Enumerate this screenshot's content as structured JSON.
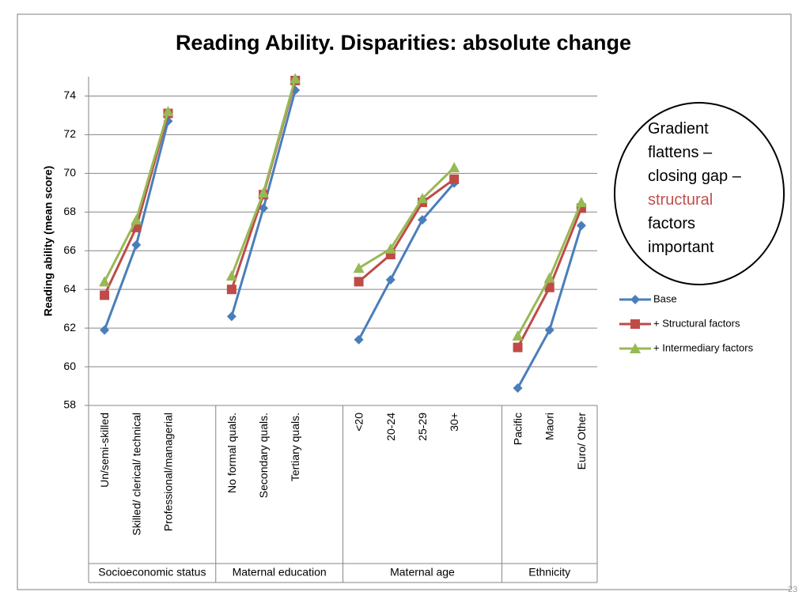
{
  "chart_data": {
    "type": "line",
    "title": "Reading Ability. Disparities: absolute change",
    "y_label": "Reading ability (mean score)",
    "categories": [
      "Un/semi-skilled",
      "Skilled/ clerical/ technical",
      "Professional/managerial",
      null,
      "No formal quals.",
      "Secondary quals.",
      "Tertiary quals.",
      null,
      "<20",
      "20-24",
      "25-29",
      "30+",
      null,
      "Pacific",
      "Maori",
      "Euro/ Other"
    ],
    "groups": [
      "Socioeconomic status",
      "Maternal education",
      "Maternal age",
      "Ethnicity"
    ],
    "series": [
      {
        "name": "Base",
        "color": "#4a7ebb",
        "marker": "diamond",
        "values": [
          61.9,
          66.3,
          72.7,
          null,
          62.6,
          68.2,
          74.3,
          null,
          61.4,
          64.5,
          67.6,
          69.5,
          null,
          58.9,
          61.9,
          67.3
        ]
      },
      {
        "name": "+ Structural factors",
        "color": "#be4b48",
        "marker": "square",
        "values": [
          63.7,
          67.2,
          73.1,
          null,
          64.0,
          68.9,
          74.8,
          null,
          64.4,
          65.8,
          68.5,
          69.7,
          null,
          61.0,
          64.1,
          68.2
        ]
      },
      {
        "name": "+ Intermediary factors",
        "color": "#98b954",
        "marker": "triangle",
        "values": [
          64.4,
          67.6,
          73.2,
          null,
          64.7,
          69.0,
          74.9,
          null,
          65.1,
          66.1,
          68.7,
          70.3,
          null,
          61.6,
          64.6,
          68.5
        ]
      }
    ],
    "ylim": [
      58,
      75
    ],
    "yticks": [
      58,
      60,
      62,
      64,
      66,
      68,
      70,
      72,
      74
    ],
    "grid": true,
    "legend": "right",
    "annotation": [
      "Gradient flattens – closing gap –",
      "structural",
      "factors important"
    ]
  },
  "slide_number": "23"
}
